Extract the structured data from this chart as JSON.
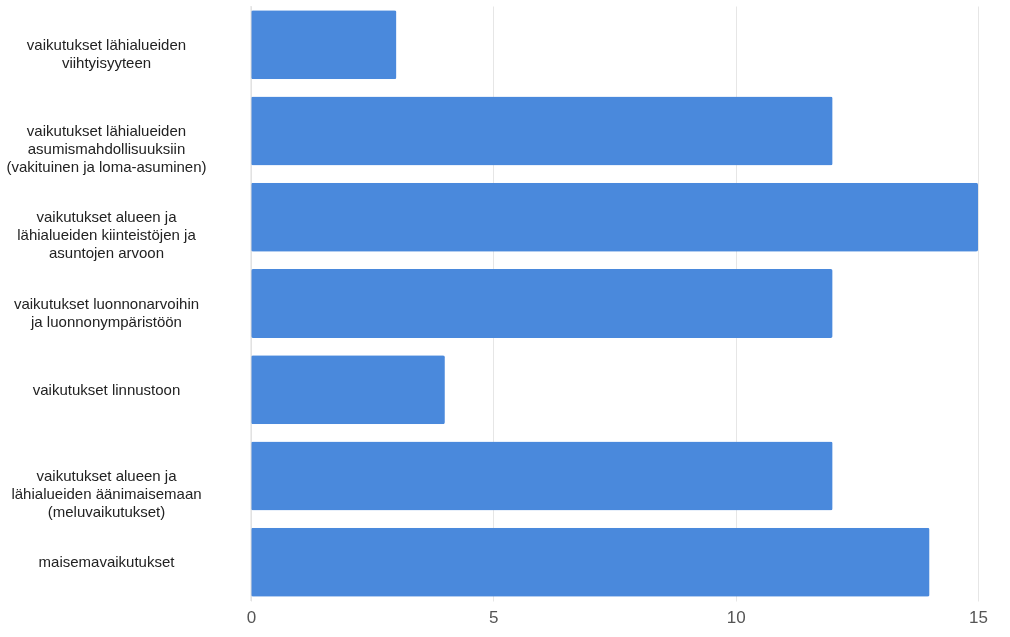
{
  "chart_data": {
    "type": "bar",
    "orientation": "horizontal",
    "categories": [
      "vaikutukset lähialueiden viihtyisyyteen",
      "vaikutukset lähialueiden asumismahdollisuuksiin (vakituinen ja loma-asuminen)",
      "vaikutukset alueen ja lähialueiden kiinteistöjen ja asuntojen arvoon",
      "vaikutukset luonnonarvoihin ja luonnonympäristöön",
      "vaikutukset linnustoon",
      "vaikutukset alueen ja lähialueiden äänimaisemaan (meluvaikutukset)",
      "maisemavaikutukset"
    ],
    "values": [
      3,
      12,
      15,
      12,
      4,
      12,
      14
    ],
    "color": "#4a89dc",
    "xlim": [
      0,
      15
    ],
    "xticks": [
      0,
      5,
      10,
      15
    ],
    "grid": "x"
  }
}
